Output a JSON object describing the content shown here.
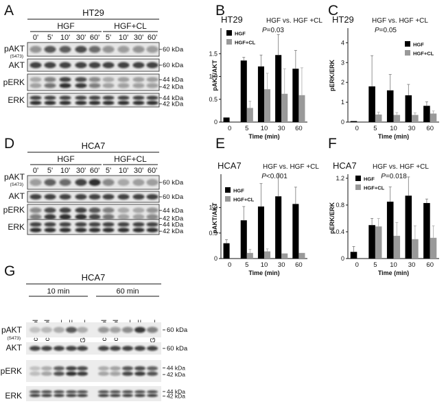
{
  "panel_letters": [
    "A",
    "B",
    "C",
    "D",
    "E",
    "F",
    "G"
  ],
  "blots": {
    "A": {
      "cell_line": "HT29",
      "groups": [
        {
          "name": "HGF",
          "lanes": [
            "0'",
            "5'",
            "10'",
            "30'",
            "60'"
          ]
        },
        {
          "name": "HGF+CL",
          "lanes": [
            "5'",
            "10'",
            "30'",
            "60'"
          ]
        }
      ],
      "rows": [
        {
          "label": "pAKT",
          "sublabel": "(S473)",
          "sizes": [
            "60 kDa"
          ]
        },
        {
          "label": "AKT",
          "sublabel": "",
          "sizes": [
            "60 kDa"
          ]
        },
        {
          "label": "pERK",
          "sublabel": "",
          "sizes": [
            "44 kDa",
            "42 kDa"
          ]
        },
        {
          "label": "ERK",
          "sublabel": "",
          "sizes": [
            "44 kDa",
            "42 kDa"
          ]
        }
      ]
    },
    "D": {
      "cell_line": "HCA7",
      "groups": [
        {
          "name": "HGF",
          "lanes": [
            "0'",
            "5'",
            "10'",
            "30'",
            "60'"
          ]
        },
        {
          "name": "HGF+CL",
          "lanes": [
            "5'",
            "10'",
            "30'",
            "60'"
          ]
        }
      ],
      "rows": [
        {
          "label": "pAKT",
          "sublabel": "(S473)",
          "sizes": [
            "60 kDa"
          ]
        },
        {
          "label": "AKT",
          "sublabel": "",
          "sizes": [
            "60 kDa"
          ]
        },
        {
          "label": "pERK",
          "sublabel": "",
          "sizes": [
            "44 kDa",
            "42 kDa"
          ]
        },
        {
          "label": "ERK",
          "sublabel": "",
          "sizes": [
            "44 kDa",
            "42 kDa"
          ]
        }
      ]
    },
    "G": {
      "cell_line": "HCA7",
      "timepoints": [
        "10 min",
        "60 min"
      ],
      "lanes": [
        "control",
        "control",
        "CL",
        "HGF",
        "HGF+CL",
        "control",
        "control",
        "CL",
        "HGF",
        "HGF+CL"
      ],
      "rows": [
        {
          "label": "pAKT",
          "sublabel": "(S473)",
          "sizes": [
            "60 kDa"
          ]
        },
        {
          "label": "AKT",
          "sublabel": "",
          "sizes": [
            "60 kDa"
          ]
        },
        {
          "label": "pERK",
          "sublabel": "",
          "sizes": [
            "44 kDa",
            "42 kDa"
          ]
        },
        {
          "label": "ERK",
          "sublabel": "",
          "sizes": [
            "44 kDa",
            "42 kDa"
          ]
        }
      ]
    }
  },
  "legend_labels": [
    "HGF",
    "HGF+CL"
  ],
  "colors": {
    "HGF": "#000000",
    "HGF+CL": "#999999"
  },
  "chart_data": [
    {
      "panel": "B",
      "type": "bar",
      "cell_line": "HT29",
      "comparison": "HGF vs. HGF +CL",
      "pvalue": "P=0.03",
      "ylabel": "pAKT/AKT",
      "xlabel": "Time (min)",
      "ylim": [
        0,
        2.0
      ],
      "yticks": [
        0,
        0.5,
        1.0,
        1.5
      ],
      "categories": [
        "0",
        "5",
        "10",
        "30",
        "60"
      ],
      "legend": "top-left",
      "series": [
        {
          "name": "HGF",
          "values": [
            0.1,
            1.35,
            1.22,
            1.47,
            1.17
          ],
          "errors": [
            0,
            0.07,
            0.25,
            0.45,
            0.4
          ]
        },
        {
          "name": "HGF+CL",
          "values": [
            null,
            0.31,
            0.72,
            0.62,
            0.59
          ],
          "errors": [
            0,
            0.15,
            0.35,
            0.55,
            0.6
          ]
        }
      ]
    },
    {
      "panel": "C",
      "type": "bar",
      "cell_line": "HT29",
      "comparison": "HGF vs. HGF +CL",
      "pvalue": "P=0.05",
      "ylabel": "pERK/ERK",
      "xlabel": "Time (min)",
      "ylim": [
        0,
        4.6
      ],
      "yticks": [
        0,
        1,
        2,
        3,
        4
      ],
      "categories": [
        "0",
        "5",
        "10",
        "30",
        "60"
      ],
      "legend": "right",
      "series": [
        {
          "name": "HGF",
          "values": [
            0.05,
            1.8,
            1.6,
            1.35,
            0.82
          ],
          "errors": [
            0,
            1.55,
            0.8,
            0.55,
            0.2
          ]
        },
        {
          "name": "HGF+CL",
          "values": [
            null,
            0.38,
            0.36,
            0.36,
            0.43
          ],
          "errors": [
            0,
            0.12,
            0.12,
            0.1,
            0.13
          ]
        }
      ]
    },
    {
      "panel": "E",
      "type": "bar",
      "cell_line": "HCA7",
      "comparison": "HGF vs. HGF +CL",
      "pvalue": "P<0.001",
      "ylabel": "pAKT/AKT",
      "xlabel": "Time (min)",
      "ylim": [
        0,
        1.6
      ],
      "yticks": [
        0,
        0.5,
        1.0
      ],
      "categories": [
        "0",
        "5",
        "10",
        "30",
        "60"
      ],
      "legend": "top-left",
      "series": [
        {
          "name": "HGF",
          "values": [
            0.3,
            0.75,
            1.02,
            1.22,
            1.07
          ],
          "errors": [
            0.07,
            0.27,
            0.45,
            0.45,
            0.33
          ]
        },
        {
          "name": "HGF+CL",
          "values": [
            null,
            0.11,
            0.14,
            0.1,
            0.11
          ],
          "errors": [
            0,
            0.07,
            0.05,
            0,
            0
          ]
        }
      ]
    },
    {
      "panel": "F",
      "type": "bar",
      "cell_line": "HCA7",
      "comparison": "HGF vs. HGF +CL",
      "pvalue": "P=0.018",
      "ylabel": "pERK/ERK",
      "xlabel": "Time (min)",
      "ylim": [
        0,
        1.22
      ],
      "yticks": [
        0,
        0.4,
        0.8,
        1.2
      ],
      "categories": [
        "0",
        "5",
        "10",
        "30",
        "60"
      ],
      "legend": "top-left",
      "series": [
        {
          "name": "HGF",
          "values": [
            0.1,
            0.5,
            0.85,
            0.94,
            0.83
          ],
          "errors": [
            0.08,
            0.1,
            0.22,
            0.28,
            0.06
          ]
        },
        {
          "name": "HGF+CL",
          "values": [
            null,
            0.48,
            0.34,
            0.29,
            0.31
          ],
          "errors": [
            0,
            0.12,
            0.2,
            0.2,
            0.18
          ]
        }
      ]
    }
  ]
}
